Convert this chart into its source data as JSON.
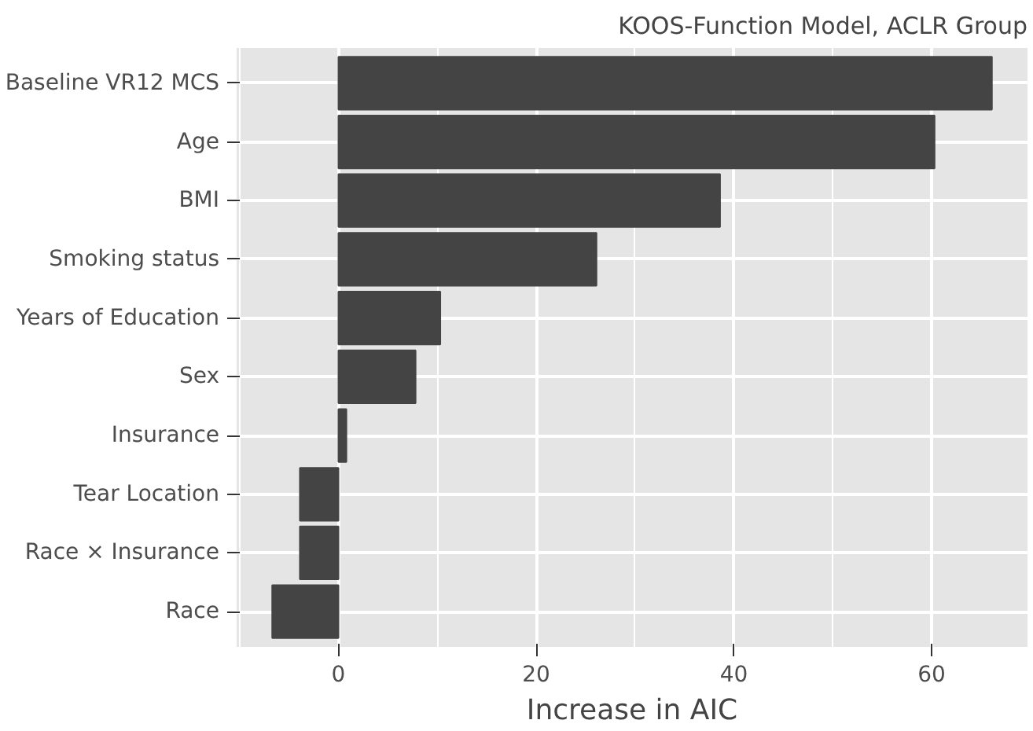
{
  "chart_data": {
    "type": "bar",
    "orientation": "horizontal",
    "title": "KOOS-Function Model, ACLR Group",
    "xlabel": "Increase in AIC",
    "categories": [
      "Baseline VR12 MCS",
      "Age",
      "BMI",
      "Smoking status",
      "Years of Education",
      "Sex",
      "Insurance",
      "Tear Location",
      "Race × Insurance",
      "Race"
    ],
    "values": [
      66.1,
      60.3,
      38.6,
      26.1,
      10.3,
      7.8,
      0.8,
      -3.9,
      -3.9,
      -6.7
    ],
    "color": "#444444",
    "xlim": [
      -10.3,
      69.7
    ],
    "xticks": [
      0,
      20,
      40,
      60
    ],
    "grid": true
  }
}
